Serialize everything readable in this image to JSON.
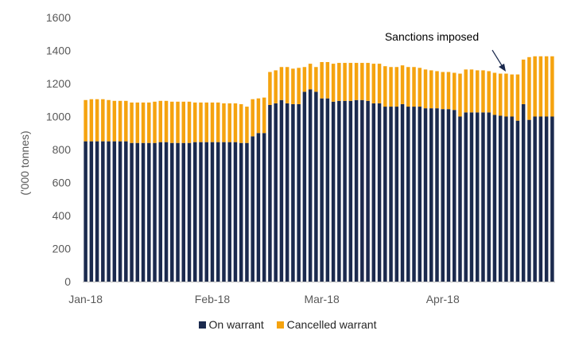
{
  "chart_data": {
    "type": "bar",
    "stacked": true,
    "title": "",
    "xlabel": "",
    "ylabel": "('000 tonnes)",
    "ylim": [
      0,
      1600
    ],
    "yticks": [
      "0",
      "200",
      "400",
      "600",
      "800",
      "1000",
      "1200",
      "1400",
      "1600"
    ],
    "xtick_labels": [
      {
        "label": "Jan-18",
        "index": 0
      },
      {
        "label": "Feb-18",
        "index": 22
      },
      {
        "label": "Mar-18",
        "index": 41
      },
      {
        "label": "Apr-18",
        "index": 62
      }
    ],
    "grid": false,
    "legend_position": "bottom",
    "annotation": {
      "text": "Sanctions imposed",
      "bar_index": 74
    },
    "colors": {
      "on_warrant": "#1b2a4e",
      "cancelled_warrant": "#f5a30f",
      "axis": "#bfbfbf"
    },
    "series": [
      {
        "name": "On warrant",
        "values": [
          850,
          850,
          850,
          850,
          850,
          850,
          850,
          850,
          840,
          840,
          840,
          840,
          840,
          845,
          845,
          840,
          840,
          840,
          840,
          845,
          845,
          845,
          845,
          845,
          845,
          845,
          845,
          840,
          840,
          880,
          900,
          900,
          1070,
          1080,
          1100,
          1080,
          1075,
          1075,
          1150,
          1165,
          1150,
          1110,
          1110,
          1090,
          1095,
          1095,
          1095,
          1100,
          1100,
          1095,
          1080,
          1080,
          1060,
          1060,
          1060,
          1075,
          1060,
          1060,
          1060,
          1050,
          1050,
          1050,
          1045,
          1045,
          1040,
          1000,
          1025,
          1025,
          1025,
          1025,
          1025,
          1010,
          1005,
          1000,
          1000,
          975,
          1075,
          980,
          1000,
          1000,
          1000,
          1000
        ]
      },
      {
        "name": "Cancelled warrant",
        "values": [
          250,
          255,
          255,
          255,
          250,
          245,
          245,
          245,
          245,
          245,
          245,
          245,
          250,
          250,
          250,
          250,
          250,
          250,
          250,
          240,
          240,
          240,
          240,
          240,
          235,
          235,
          235,
          235,
          220,
          225,
          210,
          215,
          200,
          200,
          200,
          220,
          215,
          220,
          150,
          155,
          150,
          220,
          220,
          230,
          230,
          230,
          230,
          225,
          225,
          230,
          240,
          240,
          245,
          240,
          240,
          235,
          240,
          240,
          235,
          235,
          230,
          225,
          225,
          225,
          225,
          260,
          260,
          260,
          255,
          255,
          250,
          255,
          255,
          260,
          255,
          280,
          270,
          380,
          365,
          365,
          365,
          365
        ]
      }
    ]
  }
}
